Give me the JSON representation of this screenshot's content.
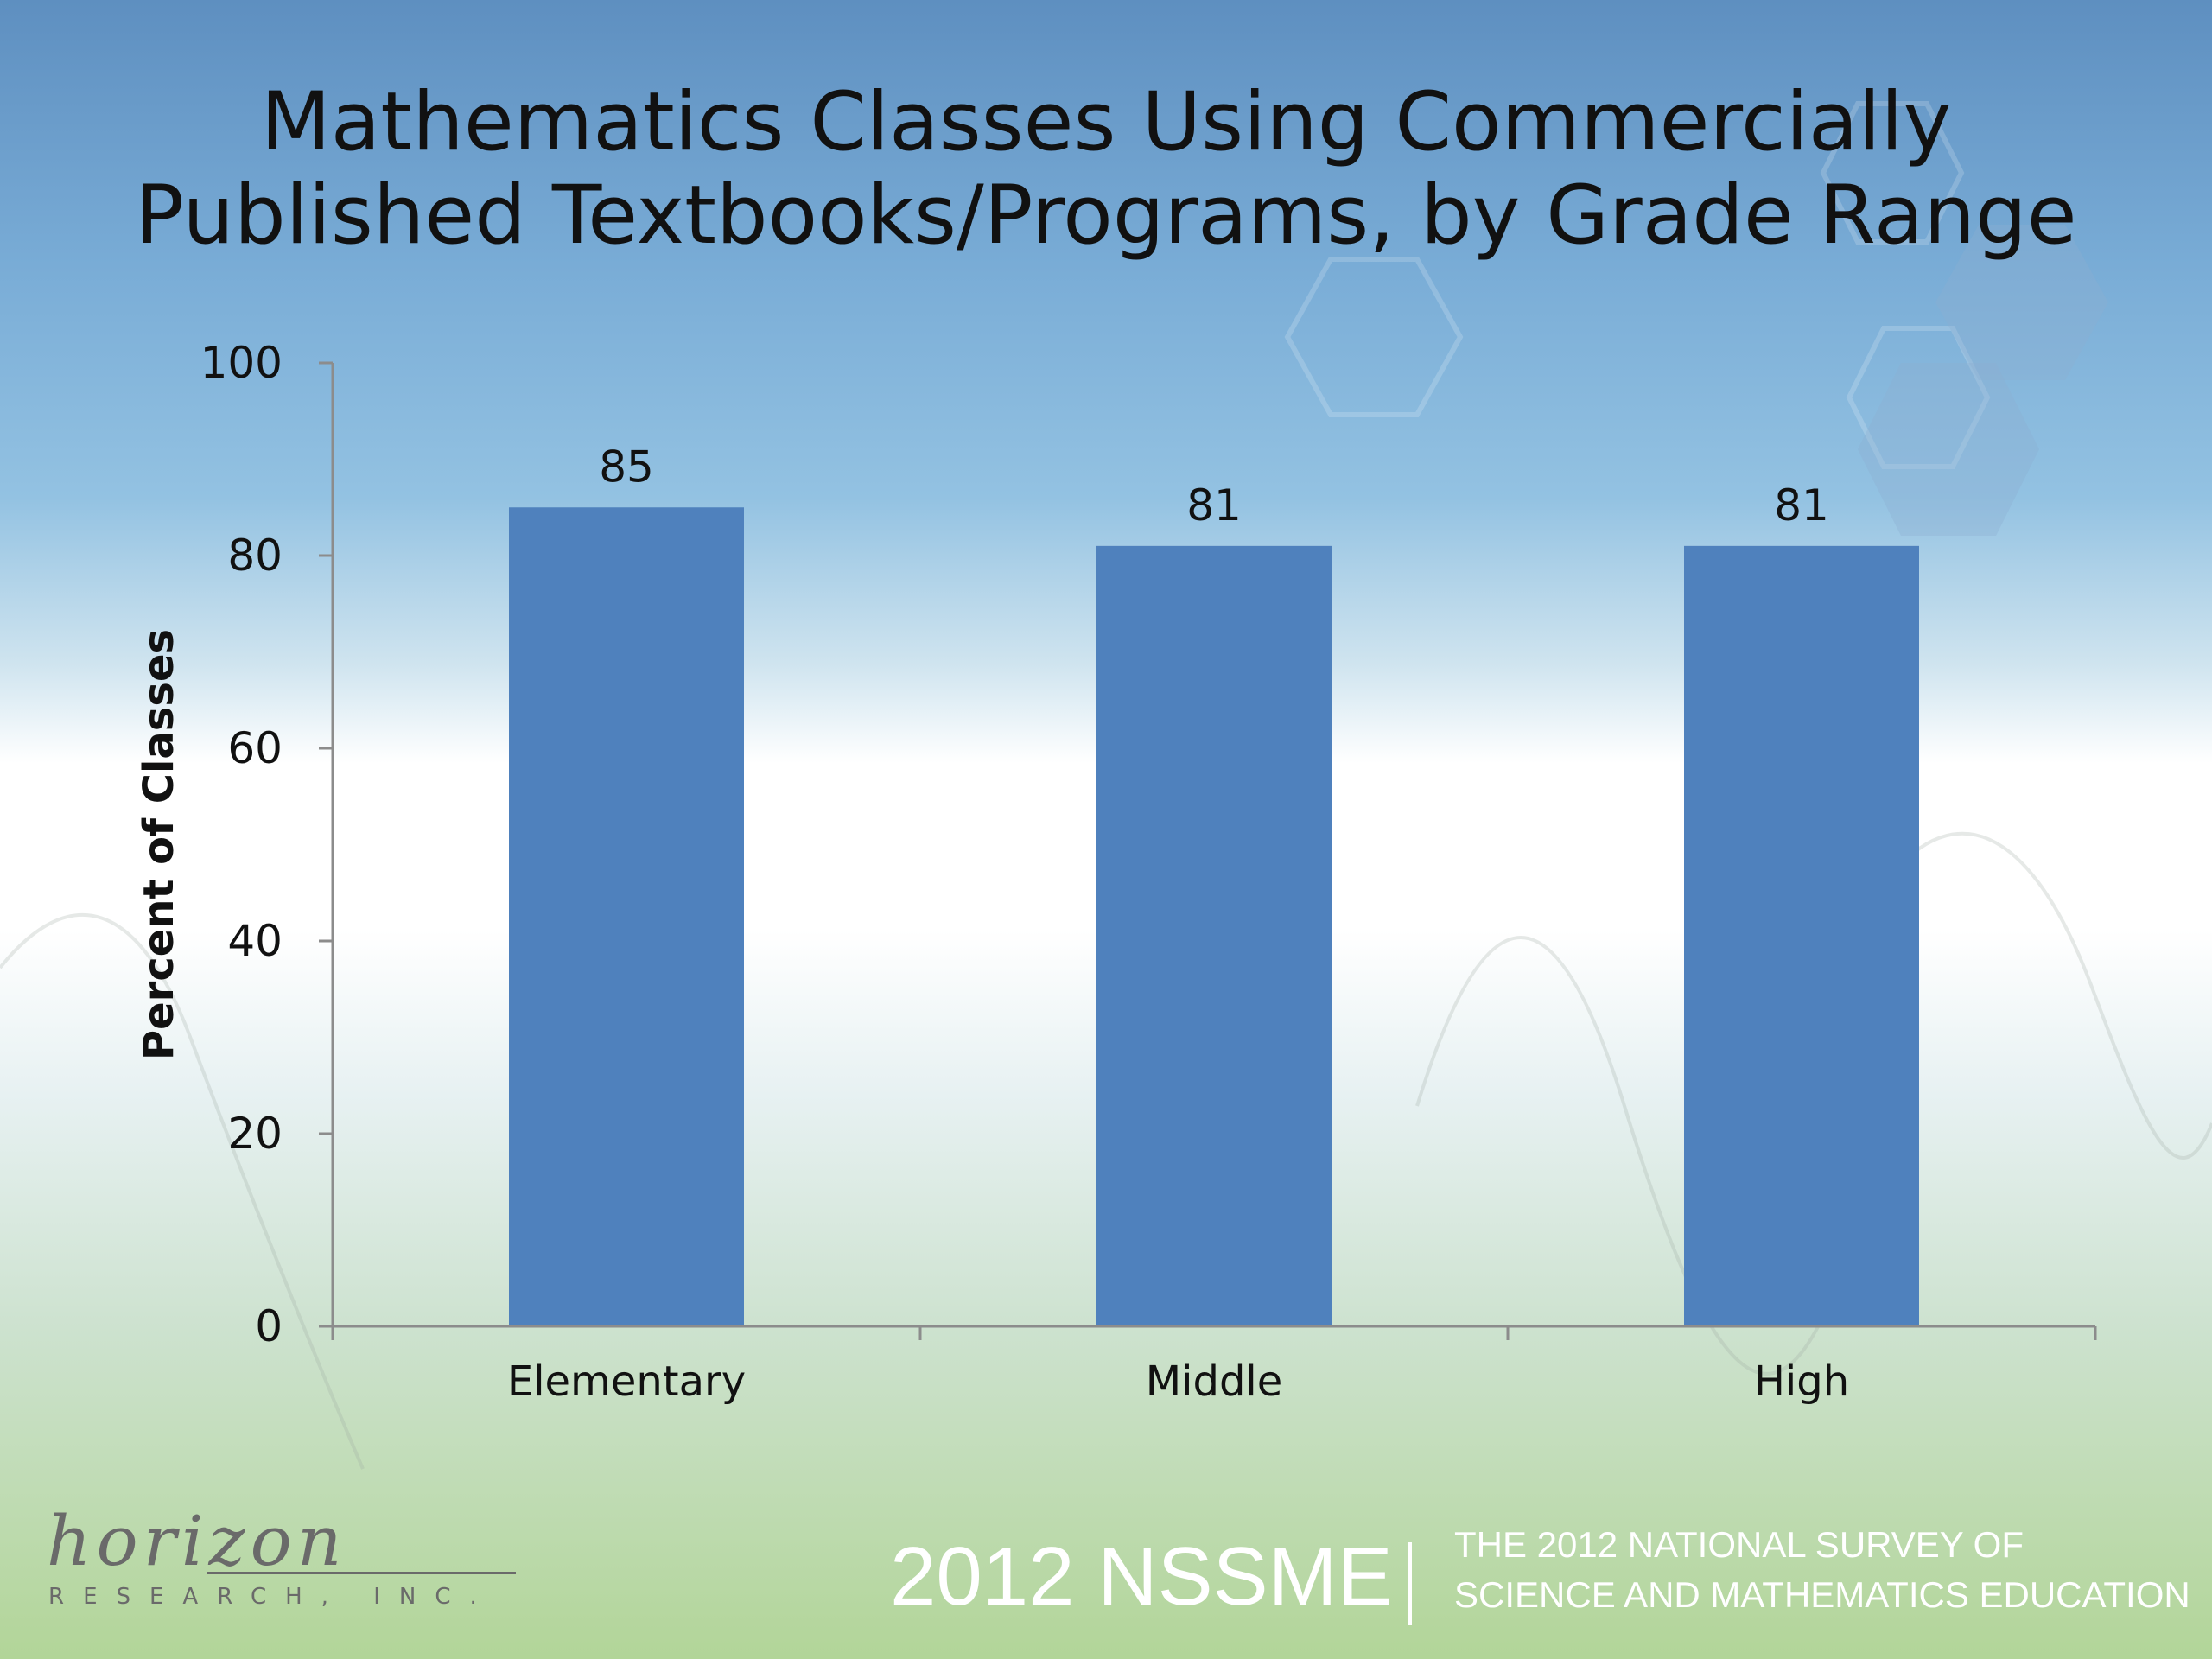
{
  "slide": {
    "title_line1": "Mathematics Classes Using Commercially",
    "title_line2": "Published Textbooks/Programs, by Grade Range"
  },
  "chart_data": {
    "type": "bar",
    "categories": [
      "Elementary",
      "Middle",
      "High"
    ],
    "values": [
      85,
      81,
      81
    ],
    "data_labels": [
      "85",
      "81",
      "81"
    ],
    "ylabel": "Percent of Classes",
    "xlabel": "",
    "ylim": [
      0,
      100
    ],
    "yticks": [
      0,
      20,
      40,
      60,
      80,
      100
    ],
    "grid": false,
    "legend": "none",
    "bar_color": "#4f81bd"
  },
  "footer": {
    "logo_script": "horizon",
    "logo_sub": "RESEARCH, INC.",
    "nssme": "2012 NSSME",
    "tagline_line1": "THE 2012 NATIONAL SURVEY OF",
    "tagline_line2": "SCIENCE AND MATHEMATICS EDUCATION"
  },
  "colors": {
    "bar": "#4f81bd",
    "axis": "#8c8c8c",
    "text": "#111111",
    "footer_text": "#ffffff",
    "logo": "#6a6a6a"
  }
}
